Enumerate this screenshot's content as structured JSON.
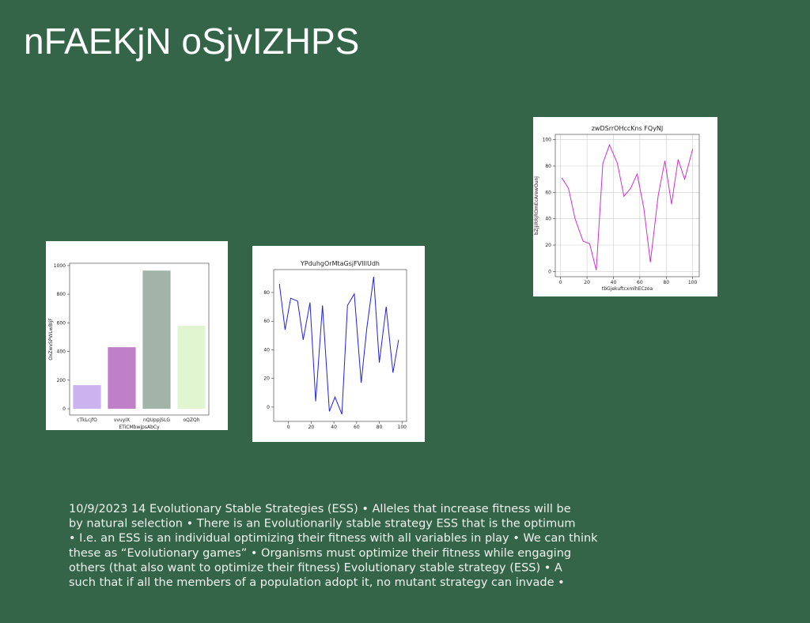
{
  "title": "nFAEKjN oSjvIZHPS",
  "body": [
    "10/9/2023 14 Evolutionary Stable Strategies (ESS) • Alleles that increase fitness will be",
    "by natural selection • There is an Evolutionarily stable strategy ESS that is the optimum",
    "• I.e. an ESS is an individual optimizing their fitness with all variables in play • We can think",
    "these as “Evolutionary games” • Organisms must optimize their fitness while engaging",
    "others (that also want to optimize their fitness) Evolutionary stable strategy (ESS) • A",
    "such that if all the members of a population adopt it, no mutant strategy can invade •"
  ],
  "chart_data": [
    {
      "type": "bar",
      "xlabel": "ETiCMbwjpsAbCy",
      "ylabel": "OxZwvSPWLwBIjF",
      "categories": [
        "cTkLcjfO",
        "vvuyIX",
        "nQUppjSLG",
        "oQZQh"
      ],
      "values": [
        165,
        430,
        965,
        580
      ],
      "colors": [
        "#cbb3ef",
        "#bf7fc9",
        "#a2b4a9",
        "#e0f5d0"
      ],
      "ylim": [
        -44,
        1016
      ],
      "yticks": [
        0,
        200,
        400,
        600,
        800,
        1000
      ],
      "grid": false
    },
    {
      "type": "line",
      "title": "YPduhgOrMtaGsjFVIllUdh",
      "color": "#2222dd",
      "x": [
        -8,
        -3,
        2,
        8,
        13,
        19,
        24,
        30,
        36,
        41,
        47,
        52,
        58,
        64,
        69,
        75,
        80,
        86,
        92,
        97
      ],
      "values": [
        86,
        54,
        76,
        74,
        47,
        73,
        4,
        71,
        -3,
        7,
        -5,
        71,
        79,
        17,
        55,
        91,
        31,
        70,
        24,
        47
      ],
      "xlim": [
        -13,
        104
      ],
      "xticks": [
        0,
        20,
        40,
        60,
        80,
        100
      ],
      "ylim": [
        -10,
        96
      ],
      "yticks": [
        0,
        20,
        40,
        60,
        80
      ],
      "grid": false
    },
    {
      "type": "line",
      "title": "zwDSrrOHccKns FQyNJ",
      "xlabel": "tbGjekuftcxmlhECzoa",
      "ylabel": "bZJjiRRjROmEcArewOunj",
      "color": "#cc33cc",
      "x": [
        1,
        6,
        11,
        17,
        22,
        27,
        32,
        37,
        43,
        48,
        53,
        58,
        63,
        68,
        74,
        79,
        84,
        89,
        94,
        100
      ],
      "values": [
        71,
        63,
        40,
        23,
        21,
        1,
        82,
        96,
        82,
        57,
        63,
        74,
        48,
        7,
        58,
        84,
        51,
        85,
        70,
        93
      ],
      "xlim": [
        -4,
        105
      ],
      "xticks": [
        0,
        20,
        40,
        60,
        80,
        100
      ],
      "ylim": [
        -4,
        104
      ],
      "yticks": [
        0,
        20,
        40,
        60,
        80,
        100
      ],
      "grid": true
    }
  ]
}
